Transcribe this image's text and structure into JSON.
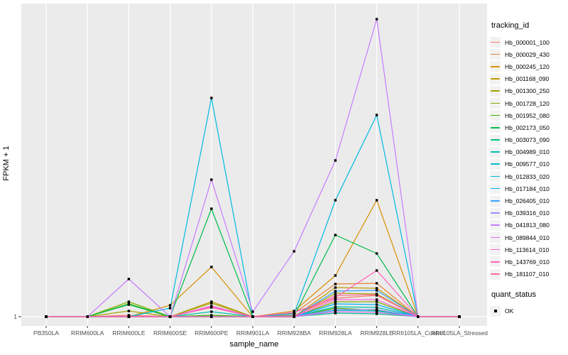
{
  "colors": {
    "panel_bg": "#EBEBEB",
    "gridline": "#FFFFFF",
    "tick_mark": "#333333",
    "tick_text": "#4D4D4D",
    "marker": "#000000",
    "legend_key_bg": "#F2F2F2"
  },
  "y_axis": {
    "title": "FPKM + 1",
    "tick_labels": [
      "1"
    ]
  },
  "x_axis": {
    "title": "sample_name"
  },
  "legend": {
    "tracking_title": "tracking_id",
    "quant_title": "quant_status",
    "quant_items": [
      {
        "label": "OK",
        "marker": "black-square"
      }
    ]
  },
  "chart_data": {
    "type": "line",
    "title": "",
    "xlabel": "sample_name",
    "ylabel": "FPKM + 1",
    "ylim": [
      1,
      45
    ],
    "y_tick_labels": [
      "1"
    ],
    "grid": "vertical-major-and-baseline",
    "legend_position": "right",
    "marker": "square",
    "categories": [
      "PB350LA",
      "RRIM600LA",
      "RRIM600LE",
      "RRIM600SE",
      "RRIM600PE",
      "RRIM901LA",
      "RRIM928BA",
      "RRIM928LA",
      "RRIM928LE",
      "RRII105LA_Control",
      "RRII105LA_Stressed"
    ],
    "series": [
      {
        "name": "Hb_000001_100",
        "color": "#F8766D",
        "values": [
          1,
          1,
          1.2,
          1,
          2.4,
          1,
          1.2,
          3.6,
          4.0,
          1,
          1
        ]
      },
      {
        "name": "Hb_000029_430",
        "color": "#EA8331",
        "values": [
          1,
          1,
          1,
          1,
          1,
          1,
          1.5,
          5.6,
          5.7,
          1,
          1
        ]
      },
      {
        "name": "Hb_000245_120",
        "color": "#D89000",
        "values": [
          1,
          1,
          1,
          2.6,
          8.0,
          1,
          1.8,
          6.8,
          17.4,
          1,
          1
        ]
      },
      {
        "name": "Hb_001168_090",
        "color": "#C09B00",
        "values": [
          1,
          1,
          1,
          1,
          3.1,
          1,
          1,
          5.1,
          5.0,
          1,
          1
        ]
      },
      {
        "name": "Hb_001300_250",
        "color": "#A3A500",
        "values": [
          1,
          1,
          1.8,
          1,
          2.9,
          1,
          1,
          4.3,
          4.2,
          1,
          1
        ]
      },
      {
        "name": "Hb_001728_120",
        "color": "#7CAE00",
        "values": [
          1,
          1,
          3.1,
          1,
          1,
          1,
          1,
          3.1,
          3.1,
          1,
          1
        ]
      },
      {
        "name": "Hb_001952_080",
        "color": "#39B600",
        "values": [
          1,
          1,
          2.8,
          1,
          1.2,
          1,
          1,
          2.2,
          1.9,
          1,
          1
        ]
      },
      {
        "name": "Hb_002173_050",
        "color": "#00BB4E",
        "values": [
          1,
          1,
          2.7,
          1,
          16.2,
          1,
          1.1,
          12.5,
          9.9,
          1,
          1
        ]
      },
      {
        "name": "Hb_003073_090",
        "color": "#00C087",
        "values": [
          1,
          1,
          1,
          1,
          1,
          1,
          1,
          1.5,
          1.4,
          1,
          1
        ]
      },
      {
        "name": "Hb_004989_010",
        "color": "#00C1AB",
        "values": [
          1,
          1,
          1,
          1,
          1.7,
          1,
          1,
          2.4,
          2.3,
          1,
          1
        ]
      },
      {
        "name": "Hb_009577_010",
        "color": "#00BFC4",
        "values": [
          1,
          1,
          1,
          1,
          1,
          1,
          1,
          1.9,
          1.8,
          1,
          1
        ]
      },
      {
        "name": "Hb_012833_020",
        "color": "#00BAE0",
        "values": [
          1,
          1,
          1,
          2.2,
          31.8,
          1,
          1.4,
          17.4,
          29.4,
          1,
          1
        ]
      },
      {
        "name": "Hb_017184_010",
        "color": "#00B0F6",
        "values": [
          1,
          1,
          1,
          1,
          1,
          1,
          1,
          2.8,
          2.7,
          1,
          1
        ]
      },
      {
        "name": "Hb_026405_010",
        "color": "#35A2FF",
        "values": [
          1,
          1,
          1,
          1,
          1,
          1,
          1,
          4.6,
          4.7,
          1,
          1
        ]
      },
      {
        "name": "Hb_039316_010",
        "color": "#9590FF",
        "values": [
          1,
          1,
          1,
          1,
          1,
          1,
          1,
          2.0,
          2.0,
          1,
          1
        ]
      },
      {
        "name": "Hb_041813_080",
        "color": "#C77CFF",
        "values": [
          1,
          1,
          6.3,
          1,
          20.3,
          1.7,
          10.2,
          23.0,
          42.9,
          1,
          1
        ]
      },
      {
        "name": "Hb_089844_010",
        "color": "#E76BF3",
        "values": [
          1,
          1,
          1,
          1,
          1,
          1,
          1,
          1.7,
          1.6,
          1,
          1
        ]
      },
      {
        "name": "Hb_113614_010",
        "color": "#FA62DB",
        "values": [
          1,
          1,
          1,
          1,
          2.5,
          1,
          1,
          3.4,
          3.4,
          1,
          1
        ]
      },
      {
        "name": "Hb_143769_010",
        "color": "#FF62BC",
        "values": [
          1,
          1,
          1,
          1,
          2.3,
          1,
          1.6,
          3.7,
          7.5,
          1,
          1
        ]
      },
      {
        "name": "Hb_181107_010",
        "color": "#FF6A98",
        "values": [
          1,
          1,
          1,
          1,
          1,
          1,
          1,
          4.0,
          4.1,
          1,
          1
        ]
      }
    ],
    "quant_status": "OK"
  }
}
